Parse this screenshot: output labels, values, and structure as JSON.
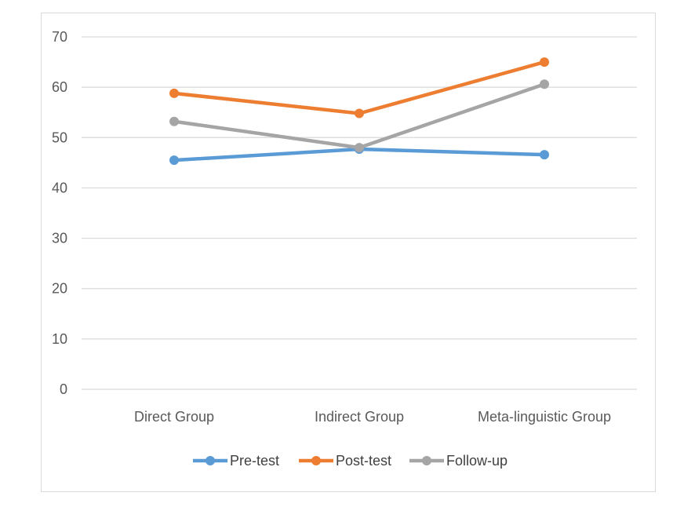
{
  "chart_data": {
    "type": "line",
    "categories": [
      "Direct Group",
      "Indirect Group",
      "Meta-linguistic Group"
    ],
    "series": [
      {
        "name": "Pre-test",
        "values": [
          45.5,
          47.7,
          46.6
        ],
        "color": "#5b9bd5"
      },
      {
        "name": "Post-test",
        "values": [
          58.8,
          54.8,
          65.0
        ],
        "color": "#ed7d31"
      },
      {
        "name": "Follow-up",
        "values": [
          53.2,
          48.0,
          60.6
        ],
        "color": "#a5a5a5"
      }
    ],
    "title": "",
    "xlabel": "",
    "ylabel": "",
    "ylim": [
      0,
      70
    ],
    "yticks": [
      0,
      10,
      20,
      30,
      40,
      50,
      60,
      70
    ],
    "grid": true,
    "legend": "bottom"
  }
}
